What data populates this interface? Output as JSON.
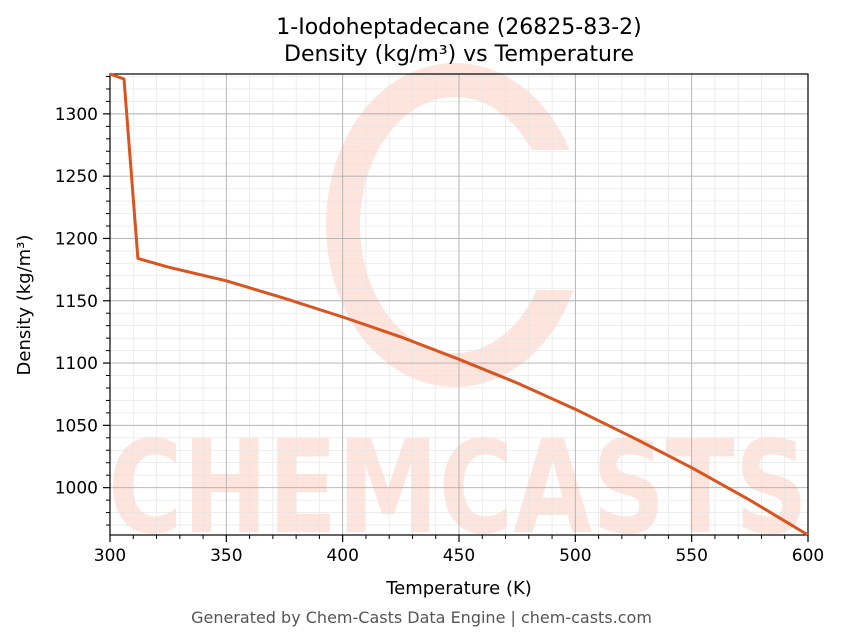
{
  "chart_data": {
    "type": "line",
    "title_line1": "1-Iodoheptadecane (26825-83-2)",
    "title_line2": "Density (kg/m³) vs Temperature",
    "xlabel": "Temperature (K)",
    "ylabel": "Density (kg/m³)",
    "xlim": [
      300,
      600
    ],
    "ylim": [
      962,
      1332
    ],
    "x_ticks": [
      300,
      350,
      400,
      450,
      500,
      550,
      600
    ],
    "y_ticks": [
      1000,
      1050,
      1100,
      1150,
      1200,
      1250,
      1300
    ],
    "grid": true,
    "series": [
      {
        "color": "#d9541e",
        "points": [
          [
            300,
            1332
          ],
          [
            306,
            1328
          ],
          [
            312,
            1184
          ],
          [
            325,
            1177
          ],
          [
            350,
            1166
          ],
          [
            375,
            1152
          ],
          [
            400,
            1137
          ],
          [
            425,
            1121
          ],
          [
            450,
            1103
          ],
          [
            475,
            1084
          ],
          [
            500,
            1063
          ],
          [
            525,
            1040
          ],
          [
            550,
            1016
          ],
          [
            575,
            990
          ],
          [
            600,
            962
          ]
        ]
      }
    ],
    "watermark": "CHEMCASTS"
  },
  "footer": "Generated by Chem-Casts Data Engine | chem-casts.com"
}
